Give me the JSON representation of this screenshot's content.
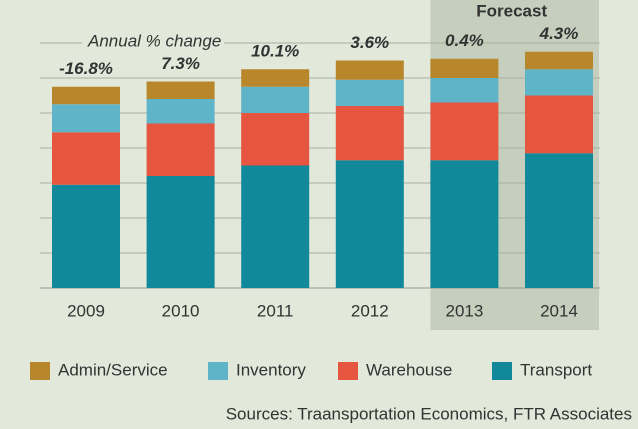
{
  "chart_data": {
    "type": "bar",
    "stacked": true,
    "annotation": "Annual % change",
    "source": "Sources: Traansportation Economics, FTR Associates",
    "forecast": {
      "label": "Forecast",
      "categories": [
        "2013",
        "2014"
      ]
    },
    "categories": [
      "2009",
      "2010",
      "2011",
      "2012",
      "2013",
      "2014"
    ],
    "annual_change": {
      "values": [
        -16.8,
        7.3,
        10.1,
        3.6,
        0.4,
        4.3
      ],
      "value_labels": [
        "-16.8%",
        "7.3%",
        "10.1%",
        "3.6%",
        "0.4%",
        "4.3%"
      ]
    },
    "series": [
      {
        "name": "Admin/Service",
        "color": "#b8862b",
        "values": [
          0.5,
          0.5,
          0.5,
          0.55,
          0.55,
          0.5
        ]
      },
      {
        "name": "Inventory",
        "color": "#5fb5c7",
        "values": [
          0.8,
          0.7,
          0.75,
          0.75,
          0.7,
          0.75
        ]
      },
      {
        "name": "Warehouse",
        "color": "#e5553f",
        "values": [
          1.5,
          1.5,
          1.5,
          1.55,
          1.65,
          1.65
        ]
      },
      {
        "name": "Transport",
        "color": "#11899a",
        "values": [
          2.95,
          3.2,
          3.5,
          3.65,
          3.65,
          3.85
        ]
      }
    ],
    "ylim": [
      0,
      7
    ],
    "yticks": [
      0,
      1,
      2,
      3,
      4,
      5,
      6,
      7
    ],
    "grid": true
  }
}
